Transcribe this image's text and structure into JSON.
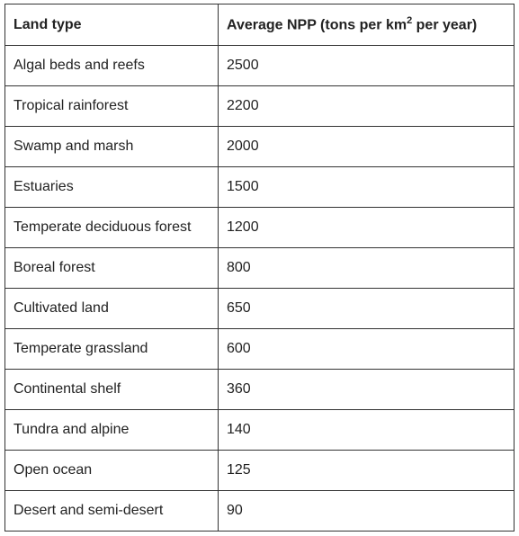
{
  "table": {
    "header": [
      {
        "text": "Land type"
      },
      {
        "before": "Average NPP (tons per km",
        "superscript": "2",
        "after": " per year)"
      }
    ],
    "rows": [
      [
        "Algal beds and reefs",
        2500
      ],
      [
        "Tropical rainforest",
        2200
      ],
      [
        "Swamp and marsh",
        2000
      ],
      [
        "Estuaries",
        1500
      ],
      [
        "Temperate deciduous forest",
        1200
      ],
      [
        "Boreal forest",
        800
      ],
      [
        "Cultivated land",
        650
      ],
      [
        "Temperate grassland",
        600
      ],
      [
        "Continental shelf",
        360
      ],
      [
        "Tundra and alpine",
        140
      ],
      [
        "Open ocean",
        125
      ],
      [
        "Desert and semi-desert",
        90
      ]
    ]
  }
}
